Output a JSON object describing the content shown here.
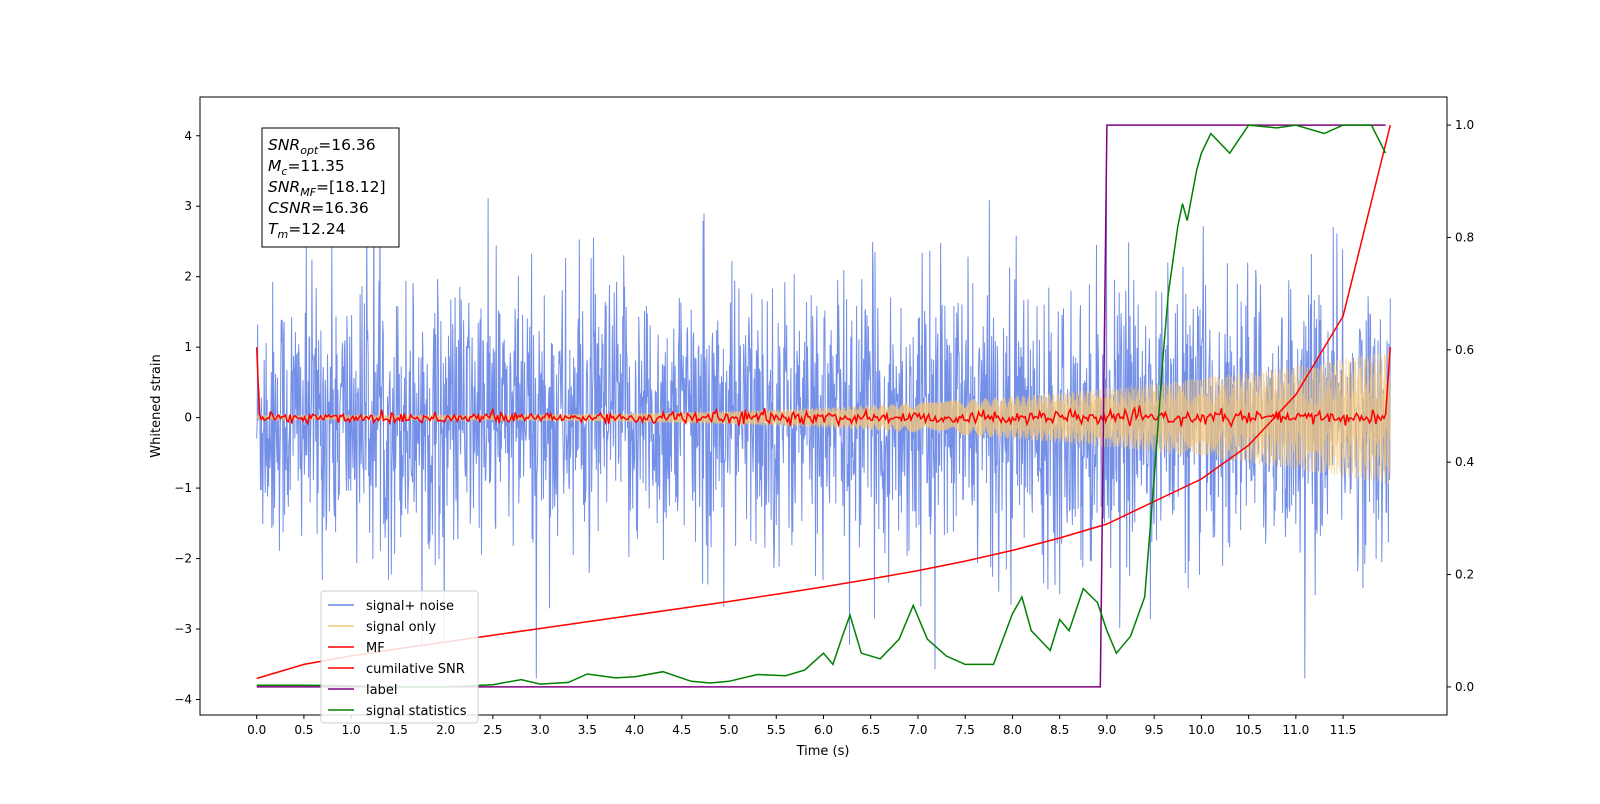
{
  "chart_data": {
    "type": "line",
    "title": "",
    "xlabel": "Time (s)",
    "ylabel": "Whitened strain",
    "xlim": [
      -0.6,
      12.6
    ],
    "ylim_left": [
      -4.22,
      4.55
    ],
    "ylim_right": [
      -0.05,
      1.05
    ],
    "x_ticks": [
      0,
      0.5,
      1,
      1.5,
      2,
      2.5,
      3,
      3.5,
      4,
      4.5,
      5,
      5.5,
      6,
      6.5,
      7,
      7.5,
      8,
      8.5,
      9,
      9.5,
      10,
      10.5,
      11,
      11.5
    ],
    "x_tick_labels": [
      "0.0",
      "0.5",
      "1.0",
      "1.5",
      "2.0",
      "2.5",
      "3.0",
      "3.5",
      "4.0",
      "4.5",
      "5.0",
      "5.5",
      "6.0",
      "6.5",
      "7.0",
      "7.5",
      "8.0",
      "8.5",
      "9.0",
      "9.5",
      "10.0",
      "10.5",
      "11.0",
      "11.5"
    ],
    "y_ticks_left": [
      -4,
      -3,
      -2,
      -1,
      0,
      1,
      2,
      3,
      4
    ],
    "y_tick_labels_left": [
      "−4",
      "−3",
      "−2",
      "−1",
      "0",
      "1",
      "2",
      "3",
      "4"
    ],
    "y_ticks_right": [
      0,
      0.2,
      0.4,
      0.6,
      0.8,
      1.0
    ],
    "y_tick_labels_right": [
      "0.0",
      "0.2",
      "0.4",
      "0.6",
      "0.8",
      "1.0"
    ],
    "grid": false,
    "legend_position": "lower-left",
    "series": [
      {
        "name": "signal+ noise",
        "axis": "left",
        "color": "#6c89e6",
        "kind": "noise-band",
        "x_range": [
          0,
          12
        ],
        "approx_extent": [
          -3.7,
          4.2
        ]
      },
      {
        "name": "signal only",
        "axis": "left",
        "color": "#f5c778",
        "kind": "chirp",
        "x_range": [
          0,
          12
        ],
        "amplitude_start": 0.03,
        "amplitude_end": 0.95
      },
      {
        "name": "MF",
        "axis": "left",
        "color": "#ff0000",
        "kind": "jitter-line",
        "x_range": [
          0,
          12
        ],
        "start_value": 1.0,
        "end_value": 1.0,
        "baseline": 0
      },
      {
        "name": "cumilative SNR",
        "axis": "right",
        "color": "#ff0000",
        "x": [
          0,
          0.5,
          1,
          1.5,
          2,
          2.5,
          3,
          3.5,
          4,
          4.5,
          5,
          5.5,
          6,
          6.5,
          7,
          7.5,
          8,
          8.5,
          9,
          9.5,
          10,
          10.5,
          11,
          11.5,
          12
        ],
        "y": [
          0.015,
          0.04,
          0.055,
          0.068,
          0.08,
          0.092,
          0.104,
          0.116,
          0.128,
          0.14,
          0.152,
          0.165,
          0.178,
          0.192,
          0.207,
          0.224,
          0.243,
          0.265,
          0.29,
          0.33,
          0.37,
          0.43,
          0.52,
          0.66,
          1.0
        ]
      },
      {
        "name": "label",
        "axis": "right",
        "color": "#800080",
        "x": [
          0,
          8.93,
          9.0,
          11.95
        ],
        "y": [
          0,
          0,
          1,
          1
        ]
      },
      {
        "name": "signal statistics",
        "axis": "right",
        "color": "#008000",
        "x": [
          0,
          0.5,
          1,
          1.5,
          2,
          2.5,
          2.8,
          3,
          3.3,
          3.5,
          3.8,
          4,
          4.3,
          4.6,
          4.8,
          5,
          5.3,
          5.6,
          5.8,
          6.0,
          6.1,
          6.2,
          6.28,
          6.4,
          6.6,
          6.8,
          6.95,
          7.1,
          7.3,
          7.5,
          7.8,
          8.0,
          8.1,
          8.2,
          8.4,
          8.5,
          8.6,
          8.75,
          8.9,
          9.0,
          9.1,
          9.25,
          9.4,
          9.5,
          9.6,
          9.65,
          9.75,
          9.8,
          9.85,
          9.95,
          10.0,
          10.1,
          10.3,
          10.5,
          10.8,
          11.0,
          11.3,
          11.5,
          11.8,
          11.95
        ],
        "y": [
          0.003,
          0.003,
          0.002,
          0.0,
          0.0,
          0.004,
          0.013,
          0.005,
          0.008,
          0.023,
          0.016,
          0.018,
          0.027,
          0.01,
          0.007,
          0.01,
          0.022,
          0.02,
          0.03,
          0.06,
          0.04,
          0.09,
          0.128,
          0.06,
          0.05,
          0.085,
          0.145,
          0.085,
          0.055,
          0.04,
          0.04,
          0.13,
          0.16,
          0.1,
          0.065,
          0.12,
          0.1,
          0.175,
          0.15,
          0.1,
          0.06,
          0.09,
          0.16,
          0.37,
          0.6,
          0.7,
          0.82,
          0.86,
          0.83,
          0.92,
          0.95,
          0.985,
          0.95,
          1.0,
          0.995,
          1.0,
          0.985,
          1.0,
          1.0,
          0.95
        ]
      }
    ],
    "annotation": {
      "lines": [
        {
          "italic": "SNR",
          "sub": "opt",
          "rest": "=16.36"
        },
        {
          "italic": "M",
          "sub": "c",
          "rest": "=11.35"
        },
        {
          "italic": "SNR",
          "sub": "MF",
          "rest": "=[18.12]"
        },
        {
          "italic": "CSNR",
          "sub": "",
          "rest": "=16.36"
        },
        {
          "italic": "T",
          "sub": "m",
          "rest": "=12.24"
        }
      ]
    }
  }
}
